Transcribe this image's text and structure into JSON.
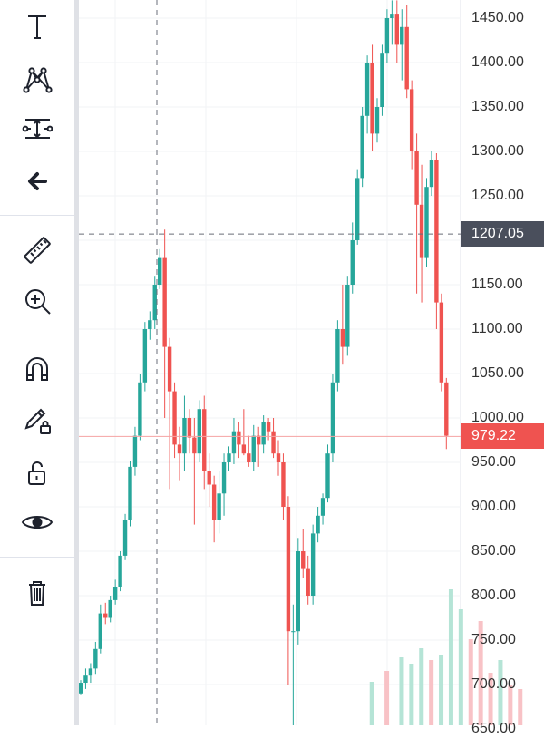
{
  "toolbar": {
    "tools": [
      {
        "name": "text-tool-button",
        "icon": "text-icon"
      },
      {
        "name": "pattern-tool-button",
        "icon": "pattern-icon"
      },
      {
        "name": "prediction-tool-button",
        "icon": "prediction-icon"
      },
      {
        "name": "back-button",
        "icon": "arrow-left-icon"
      },
      {
        "name": "measure-button",
        "icon": "ruler-icon"
      },
      {
        "name": "zoom-in-button",
        "icon": "zoom-in-icon"
      },
      {
        "name": "magnet-button",
        "icon": "magnet-icon"
      },
      {
        "name": "stay-in-drawing-mode-button",
        "icon": "pencil-lock-icon"
      },
      {
        "name": "lock-drawings-button",
        "icon": "lock-open-icon"
      },
      {
        "name": "hide-drawings-button",
        "icon": "eye-icon"
      },
      {
        "name": "remove-drawings-button",
        "icon": "trash-icon"
      }
    ]
  },
  "price_axis": {
    "labels": [
      "1450.00",
      "1400.00",
      "1350.00",
      "1300.00",
      "1250.00",
      "1200.00",
      "1150.00",
      "1100.00",
      "1050.00",
      "1000.00",
      "950.00",
      "900.00",
      "850.00",
      "800.00",
      "750.00",
      "700.00",
      "650.00"
    ],
    "crosshair_price": "1207.05",
    "last_price": "979.22"
  },
  "colors": {
    "up": "#26a69a",
    "down": "#ef5350",
    "up_volume": "#b5e4d6",
    "down_volume": "#f8c2c6",
    "crosshair_tag": "#4a4f5c",
    "last_price_tag": "#ef5350"
  },
  "chart_data": {
    "type": "candlestick",
    "crosshair": {
      "price": 1207.05
    },
    "last_price": 979.22,
    "y_axis_ticks": [
      1450,
      1400,
      1350,
      1300,
      1250,
      1200,
      1150,
      1100,
      1050,
      1000,
      950,
      900,
      850,
      800,
      750,
      700,
      650
    ],
    "candles": [
      [
        690,
        705,
        688,
        702
      ],
      [
        702,
        718,
        695,
        710
      ],
      [
        710,
        724,
        702,
        718
      ],
      [
        718,
        748,
        712,
        740
      ],
      [
        740,
        790,
        735,
        780
      ],
      [
        780,
        792,
        768,
        775
      ],
      [
        775,
        800,
        770,
        795
      ],
      [
        795,
        818,
        790,
        810
      ],
      [
        810,
        850,
        805,
        845
      ],
      [
        845,
        892,
        840,
        885
      ],
      [
        885,
        952,
        878,
        945
      ],
      [
        945,
        990,
        935,
        980
      ],
      [
        980,
        1050,
        975,
        1040
      ],
      [
        1040,
        1108,
        1030,
        1100
      ],
      [
        1100,
        1120,
        1088,
        1110
      ],
      [
        1110,
        1160,
        1100,
        1150
      ],
      [
        1150,
        1190,
        1145,
        1180
      ],
      [
        1180,
        1212,
        1000,
        1080
      ],
      [
        1080,
        1090,
        920,
        1030
      ],
      [
        1030,
        1040,
        955,
        970
      ],
      [
        970,
        990,
        930,
        960
      ],
      [
        960,
        1025,
        940,
        1000
      ],
      [
        1000,
        1010,
        960,
        978
      ],
      [
        978,
        1000,
        880,
        960
      ],
      [
        960,
        1020,
        950,
        1010
      ],
      [
        1010,
        1025,
        920,
        940
      ],
      [
        940,
        960,
        900,
        925
      ],
      [
        925,
        935,
        860,
        885
      ],
      [
        885,
        940,
        870,
        915
      ],
      [
        915,
        960,
        890,
        950
      ],
      [
        950,
        968,
        940,
        960
      ],
      [
        960,
        1000,
        948,
        985
      ],
      [
        985,
        995,
        955,
        970
      ],
      [
        970,
        1010,
        958,
        960
      ],
      [
        960,
        980,
        945,
        950
      ],
      [
        950,
        992,
        940,
        980
      ],
      [
        980,
        990,
        945,
        970
      ],
      [
        970,
        1003,
        960,
        995
      ],
      [
        995,
        1000,
        975,
        985
      ],
      [
        985,
        1000,
        955,
        960
      ],
      [
        960,
        975,
        935,
        950
      ],
      [
        950,
        960,
        885,
        900
      ],
      [
        900,
        912,
        700,
        760
      ],
      [
        760,
        790,
        650,
        760
      ],
      [
        760,
        865,
        745,
        850
      ],
      [
        850,
        875,
        820,
        830
      ],
      [
        830,
        845,
        790,
        800
      ],
      [
        800,
        880,
        790,
        870
      ],
      [
        870,
        900,
        860,
        890
      ],
      [
        890,
        915,
        880,
        910
      ],
      [
        910,
        970,
        905,
        960
      ],
      [
        960,
        1050,
        950,
        1040
      ],
      [
        1040,
        1110,
        1030,
        1100
      ],
      [
        1100,
        1150,
        1060,
        1080
      ],
      [
        1080,
        1160,
        1070,
        1150
      ],
      [
        1150,
        1220,
        1140,
        1200
      ],
      [
        1200,
        1280,
        1195,
        1270
      ],
      [
        1270,
        1350,
        1260,
        1340
      ],
      [
        1340,
        1408,
        1320,
        1400
      ],
      [
        1400,
        1420,
        1300,
        1320
      ],
      [
        1320,
        1360,
        1310,
        1350
      ],
      [
        1350,
        1420,
        1340,
        1410
      ],
      [
        1410,
        1460,
        1400,
        1450
      ],
      [
        1450,
        1470,
        1420,
        1455
      ],
      [
        1455,
        1470,
        1400,
        1420
      ],
      [
        1420,
        1460,
        1380,
        1440
      ],
      [
        1440,
        1465,
        1360,
        1370
      ],
      [
        1370,
        1380,
        1280,
        1300
      ],
      [
        1300,
        1320,
        1140,
        1240
      ],
      [
        1240,
        1285,
        1130,
        1180
      ],
      [
        1180,
        1270,
        1170,
        1260
      ],
      [
        1260,
        1300,
        1250,
        1290
      ],
      [
        1290,
        1298,
        1100,
        1130
      ],
      [
        1130,
        1140,
        1030,
        1040
      ],
      [
        1040,
        1045,
        965,
        980
      ]
    ],
    "volume": [
      {
        "x": 59,
        "h": 48,
        "up": true
      },
      {
        "x": 62,
        "h": 60,
        "up": false
      },
      {
        "x": 65,
        "h": 75,
        "up": true
      },
      {
        "x": 67,
        "h": 68,
        "up": true
      },
      {
        "x": 69,
        "h": 85,
        "up": true
      },
      {
        "x": 71,
        "h": 72,
        "up": false
      },
      {
        "x": 73,
        "h": 78,
        "up": true
      },
      {
        "x": 75,
        "h": 150,
        "up": true
      },
      {
        "x": 77,
        "h": 128,
        "up": true
      },
      {
        "x": 79,
        "h": 95,
        "up": false
      },
      {
        "x": 81,
        "h": 115,
        "up": false
      },
      {
        "x": 83,
        "h": 58,
        "up": false
      },
      {
        "x": 85,
        "h": 72,
        "up": true
      },
      {
        "x": 87,
        "h": 44,
        "up": false
      },
      {
        "x": 89,
        "h": 40,
        "up": false
      }
    ]
  }
}
